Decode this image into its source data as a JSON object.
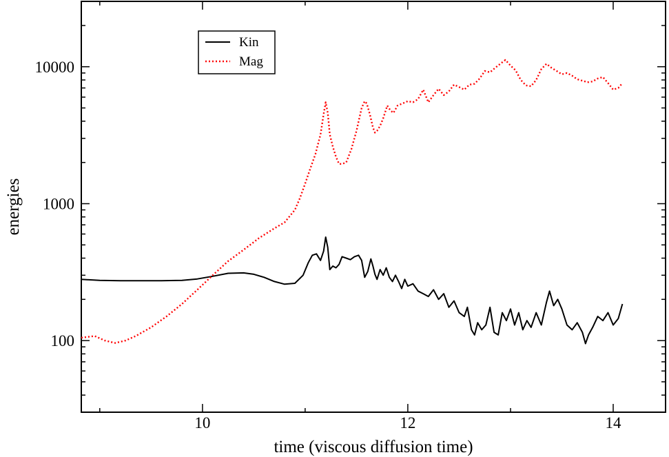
{
  "chart_data": {
    "type": "line",
    "title": "",
    "xlabel": "time (viscous diffusion time)",
    "ylabel": "energies",
    "xlim": [
      8.82,
      14.51
    ],
    "ylim": [
      30,
      30000
    ],
    "yscale": "log",
    "x_ticks": [
      {
        "value": 10,
        "label": "10"
      },
      {
        "value": 12,
        "label": "12"
      },
      {
        "value": 14,
        "label": "14"
      }
    ],
    "y_ticks": [
      {
        "value": 100,
        "label": "100"
      },
      {
        "value": 1000,
        "label": "1000"
      },
      {
        "value": 10000,
        "label": "10000"
      }
    ],
    "legend": {
      "position": "top-left"
    },
    "series": [
      {
        "name": "Kin",
        "color": "#000000",
        "style": "solid",
        "x": [
          8.82,
          9.0,
          9.2,
          9.4,
          9.6,
          9.8,
          9.95,
          10.1,
          10.25,
          10.4,
          10.5,
          10.6,
          10.7,
          10.8,
          10.9,
          10.98,
          11.03,
          11.07,
          11.11,
          11.15,
          11.18,
          11.2,
          11.22,
          11.24,
          11.27,
          11.3,
          11.33,
          11.36,
          11.4,
          11.44,
          11.48,
          11.52,
          11.55,
          11.58,
          11.61,
          11.64,
          11.66,
          11.68,
          11.7,
          11.73,
          11.76,
          11.79,
          11.82,
          11.85,
          11.88,
          11.91,
          11.94,
          11.97,
          12.0,
          12.05,
          12.1,
          12.15,
          12.2,
          12.25,
          12.3,
          12.35,
          12.4,
          12.45,
          12.5,
          12.55,
          12.58,
          12.62,
          12.65,
          12.68,
          12.72,
          12.76,
          12.8,
          12.84,
          12.88,
          12.92,
          12.96,
          13.0,
          13.04,
          13.08,
          13.12,
          13.16,
          13.2,
          13.25,
          13.3,
          13.35,
          13.38,
          13.42,
          13.46,
          13.5,
          13.55,
          13.6,
          13.65,
          13.7,
          13.73,
          13.76,
          13.8,
          13.85,
          13.9,
          13.95,
          14.0,
          14.05,
          14.09
        ],
        "y": [
          280,
          275,
          274,
          274,
          274,
          275,
          282,
          295,
          310,
          312,
          305,
          290,
          270,
          258,
          262,
          300,
          370,
          420,
          430,
          385,
          450,
          570,
          480,
          330,
          350,
          340,
          360,
          410,
          400,
          390,
          410,
          420,
          385,
          290,
          320,
          395,
          350,
          305,
          280,
          330,
          300,
          340,
          290,
          270,
          300,
          270,
          240,
          280,
          250,
          260,
          230,
          220,
          210,
          235,
          200,
          220,
          175,
          195,
          160,
          150,
          175,
          120,
          110,
          135,
          120,
          130,
          175,
          115,
          110,
          160,
          140,
          170,
          130,
          160,
          120,
          140,
          125,
          160,
          130,
          190,
          230,
          180,
          200,
          170,
          130,
          120,
          135,
          115,
          95,
          110,
          125,
          150,
          140,
          160,
          130,
          145,
          185
        ]
      },
      {
        "name": "Mag",
        "color": "#ff0000",
        "style": "dotted",
        "x": [
          8.82,
          8.95,
          9.05,
          9.15,
          9.25,
          9.35,
          9.5,
          9.65,
          9.8,
          9.95,
          10.1,
          10.25,
          10.4,
          10.55,
          10.7,
          10.8,
          10.9,
          10.95,
          11.0,
          11.05,
          11.1,
          11.15,
          11.18,
          11.2,
          11.22,
          11.24,
          11.27,
          11.3,
          11.33,
          11.36,
          11.4,
          11.45,
          11.5,
          11.55,
          11.58,
          11.6,
          11.63,
          11.66,
          11.68,
          11.7,
          11.73,
          11.76,
          11.8,
          11.83,
          11.86,
          11.9,
          11.95,
          12.0,
          12.05,
          12.1,
          12.15,
          12.2,
          12.25,
          12.3,
          12.35,
          12.4,
          12.45,
          12.5,
          12.55,
          12.6,
          12.65,
          12.7,
          12.75,
          12.8,
          12.85,
          12.9,
          12.95,
          13.0,
          13.05,
          13.1,
          13.15,
          13.2,
          13.25,
          13.3,
          13.35,
          13.4,
          13.45,
          13.5,
          13.55,
          13.6,
          13.65,
          13.7,
          13.75,
          13.8,
          13.85,
          13.9,
          13.95,
          14.0,
          14.05,
          14.09
        ],
        "y": [
          105,
          108,
          100,
          96,
          100,
          108,
          125,
          150,
          185,
          235,
          300,
          380,
          460,
          560,
          660,
          730,
          900,
          1100,
          1400,
          1800,
          2300,
          3200,
          4500,
          5500,
          4600,
          3200,
          2600,
          2200,
          1950,
          1950,
          2000,
          2500,
          3400,
          5000,
          5600,
          5400,
          4500,
          3600,
          3300,
          3400,
          3700,
          4200,
          5200,
          4800,
          4600,
          5200,
          5400,
          5600,
          5500,
          5800,
          6800,
          5500,
          6200,
          6900,
          6200,
          6600,
          7400,
          7100,
          6800,
          7400,
          7500,
          8200,
          9300,
          9100,
          9800,
          10500,
          11200,
          10200,
          9400,
          8000,
          7300,
          7200,
          8000,
          9600,
          10500,
          9800,
          9300,
          8800,
          9000,
          8600,
          8100,
          7900,
          7700,
          7800,
          8200,
          8400,
          7600,
          6800,
          7000,
          7600
        ]
      }
    ]
  }
}
